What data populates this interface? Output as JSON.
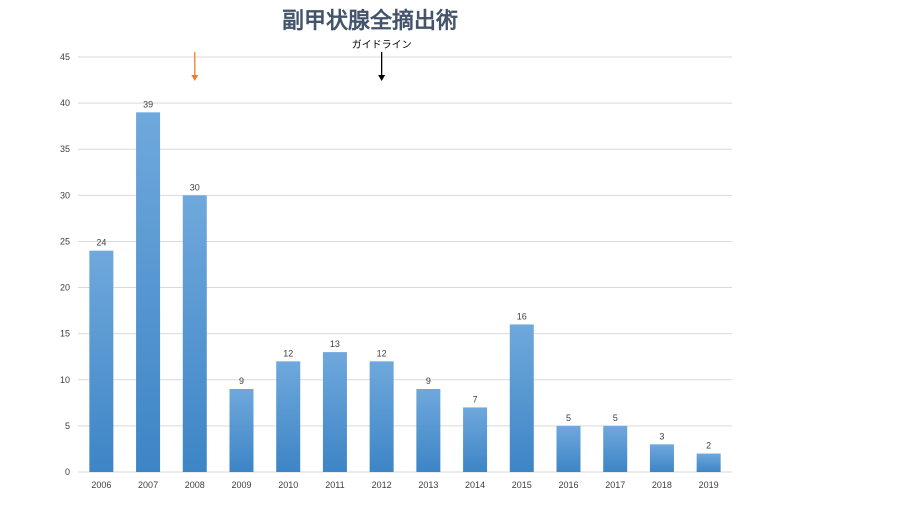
{
  "chart_data": {
    "type": "bar",
    "title": "副甲状腺全摘出術",
    "xlabel": "",
    "ylabel": "",
    "categories": [
      "2006",
      "2007",
      "2008",
      "2009",
      "2010",
      "2011",
      "2012",
      "2013",
      "2014",
      "2015",
      "2016",
      "2017",
      "2018",
      "2019"
    ],
    "values": [
      24,
      39,
      30,
      9,
      12,
      13,
      12,
      9,
      7,
      16,
      5,
      5,
      3,
      2
    ],
    "ylim": [
      0,
      45
    ],
    "yticks": [
      0,
      5,
      10,
      15,
      20,
      25,
      30,
      35,
      40,
      45
    ],
    "grid": true,
    "legend": "none",
    "annotations": [
      {
        "text": "",
        "category": "2008",
        "color": "#ed7d31"
      },
      {
        "text": "ガイドライン",
        "category": "2012",
        "color": "#000000"
      }
    ]
  },
  "colors": {
    "bar_top": "#6fa8dc",
    "bar_bottom": "#3d85c6",
    "grid": "#d9d9d9",
    "title": "#44546a"
  }
}
